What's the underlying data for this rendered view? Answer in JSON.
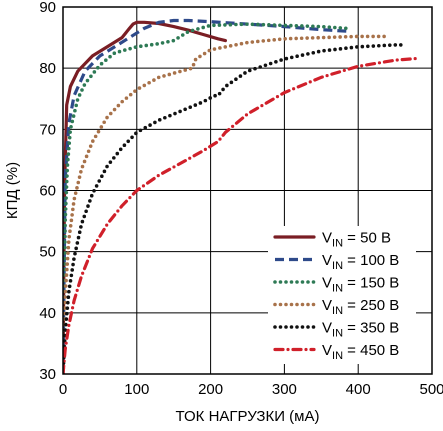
{
  "chart_data": {
    "type": "line",
    "xlabel": "ТОК НАГРУЗКИ (мА)",
    "ylabel": "КПД (%)",
    "xlim": [
      0,
      500
    ],
    "ylim": [
      30,
      90
    ],
    "xticks": [
      0,
      100,
      200,
      300,
      400,
      500
    ],
    "yticks": [
      30,
      40,
      50,
      60,
      70,
      80,
      90
    ],
    "grid": true,
    "legend_position": "bottom-right",
    "series": [
      {
        "name": "50 В",
        "legend": {
          "pre": "V",
          "sub": "IN",
          "post": " = 50 В"
        },
        "color": "#7a1e24",
        "dash": "solid",
        "x": [
          0,
          2,
          5,
          10,
          20,
          40,
          60,
          80,
          90,
          95,
          100,
          110,
          130,
          150,
          170,
          190,
          210,
          220
        ],
        "y": [
          30,
          60,
          74,
          77,
          79.5,
          82,
          83.5,
          85,
          86.5,
          87.2,
          87.5,
          87.5,
          87.3,
          86.8,
          86.2,
          85.5,
          84.8,
          84.5
        ]
      },
      {
        "name": "100 В",
        "legend": {
          "pre": "V",
          "sub": "IN",
          "post": " = 100 В"
        },
        "color": "#2e4a8a",
        "dash": "dashed",
        "x": [
          0,
          3,
          8,
          15,
          30,
          50,
          70,
          90,
          110,
          130,
          150,
          170,
          200,
          250,
          300,
          350,
          390
        ],
        "y": [
          30,
          62,
          71,
          75.5,
          79.5,
          82,
          83.5,
          85,
          86.5,
          87.5,
          87.8,
          87.8,
          87.6,
          87.2,
          86.8,
          86.3,
          86
        ]
      },
      {
        "name": "150 В",
        "legend": {
          "pre": "V",
          "sub": "IN",
          "post": " = 150 В"
        },
        "color": "#2e7a55",
        "dash": "dotted",
        "x": [
          0,
          3,
          6,
          10,
          20,
          30,
          50,
          70,
          100,
          130,
          150,
          170,
          200,
          250,
          300,
          350,
          385
        ],
        "y": [
          30,
          55,
          64,
          70,
          75,
          77.5,
          80.5,
          82.5,
          83.5,
          84,
          84.5,
          86,
          87,
          87.2,
          87,
          86.8,
          86.5
        ]
      },
      {
        "name": "250 В",
        "legend": {
          "pre": "V",
          "sub": "IN",
          "post": " = 250 В"
        },
        "color": "#a8724a",
        "dash": "dotted",
        "x": [
          0,
          3,
          8,
          15,
          25,
          40,
          60,
          80,
          100,
          130,
          160,
          175,
          180,
          200,
          250,
          300,
          350,
          400,
          440
        ],
        "y": [
          30,
          43,
          52,
          58.5,
          63.5,
          68,
          72,
          74.5,
          76.5,
          78.5,
          79.5,
          80,
          81.5,
          83,
          84.2,
          84.8,
          85,
          85.2,
          85.2
        ]
      },
      {
        "name": "350 В",
        "legend": {
          "pre": "V",
          "sub": "IN",
          "post": " = 350 В"
        },
        "color": "#111111",
        "dash": "dotted",
        "x": [
          0,
          3,
          8,
          15,
          25,
          40,
          60,
          80,
          100,
          130,
          160,
          190,
          205,
          210,
          220,
          250,
          300,
          350,
          400,
          450,
          465
        ],
        "y": [
          30,
          37,
          43.5,
          49,
          54.5,
          59.5,
          64,
          67,
          69.5,
          71.5,
          73,
          74.5,
          75.5,
          75.5,
          77,
          79.5,
          81.5,
          82.8,
          83.5,
          83.8,
          83.8
        ]
      },
      {
        "name": "450 В",
        "legend": {
          "pre": "V",
          "sub": "IN",
          "post": " = 450 В"
        },
        "color": "#d0202a",
        "dash": "dashdot",
        "x": [
          0,
          3,
          8,
          15,
          25,
          40,
          60,
          80,
          100,
          130,
          160,
          190,
          210,
          220,
          250,
          300,
          350,
          400,
          450,
          480
        ],
        "y": [
          30,
          34,
          38,
          42,
          46,
          50.5,
          54.5,
          57.5,
          60,
          62.5,
          64.5,
          66.5,
          68,
          69.5,
          72.5,
          76,
          78.5,
          80.3,
          81.3,
          81.6
        ]
      }
    ]
  }
}
